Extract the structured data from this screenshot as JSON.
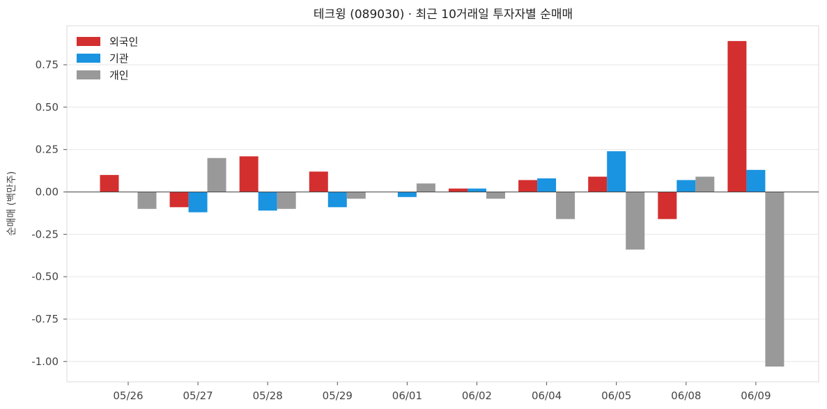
{
  "chart_data": {
    "type": "bar",
    "title": "테크윙 (089030) · 최근 10거래일 투자자별 순매매",
    "xlabel": "",
    "ylabel": "순매매 (백만주)",
    "categories": [
      "05/26",
      "05/27",
      "05/28",
      "05/29",
      "06/01",
      "06/02",
      "06/04",
      "06/05",
      "06/08",
      "06/09"
    ],
    "series": [
      {
        "name": "외국인",
        "color": "#d32f2f",
        "values": [
          0.1,
          -0.09,
          0.21,
          0.12,
          0.0,
          0.02,
          0.07,
          0.09,
          -0.16,
          0.89
        ]
      },
      {
        "name": "기관",
        "color": "#1a93e0",
        "values": [
          0.0,
          -0.12,
          -0.11,
          -0.09,
          -0.03,
          0.02,
          0.08,
          0.24,
          0.07,
          0.13
        ]
      },
      {
        "name": "개인",
        "color": "#999999",
        "values": [
          -0.1,
          0.2,
          -0.1,
          -0.04,
          0.05,
          -0.04,
          -0.16,
          -0.34,
          0.09,
          -1.03
        ]
      }
    ],
    "ylim": [
      -1.12,
      0.98
    ],
    "yticks": [
      0.75,
      0.5,
      0.25,
      0.0,
      -0.25,
      -0.5,
      -0.75,
      -1.0
    ],
    "ytick_labels": [
      "0.75",
      "0.50",
      "0.25",
      "0.00",
      "-0.25",
      "-0.50",
      "-0.75",
      "-1.00"
    ],
    "grid": true,
    "legend_position": "top-left"
  }
}
